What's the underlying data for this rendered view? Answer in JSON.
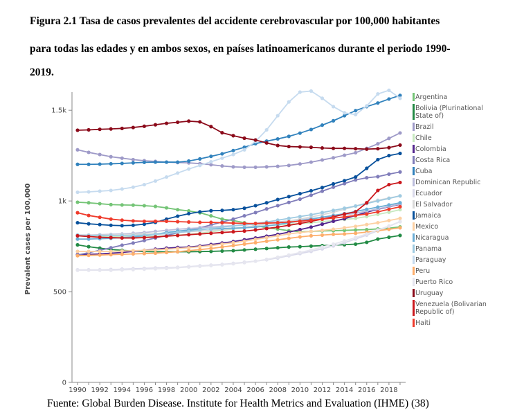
{
  "caption": {
    "line1": "Figura 2.1 Tasa de casos prevalentes del accidente cerebrovascular por 100,000 habitantes",
    "line2": "para todas las edades y en ambos sexos, en países latinoamericanos durante el periodo 1990-",
    "line3": "2019."
  },
  "source": "Fuente: Global Burden Disease. Institute for Health Metrics and Evaluation (IHME) (38)",
  "chart_data": {
    "type": "line",
    "title": "",
    "xlabel": "",
    "ylabel": "Prevalent cases per 100,000",
    "xlim": [
      1989.5,
      2019.5
    ],
    "ylim": [
      0,
      1600
    ],
    "y_ticks": [
      0,
      500,
      1000,
      1500
    ],
    "y_tick_labels": [
      "0",
      "500",
      "1k",
      "1.5k"
    ],
    "x_ticks": [
      1990,
      1992,
      1994,
      1996,
      1998,
      2000,
      2002,
      2004,
      2006,
      2008,
      2010,
      2012,
      2014,
      2016,
      2018
    ],
    "x": [
      1990,
      1991,
      1992,
      1993,
      1994,
      1995,
      1996,
      1997,
      1998,
      1999,
      2000,
      2001,
      2002,
      2003,
      2004,
      2005,
      2006,
      2007,
      2008,
      2009,
      2010,
      2011,
      2012,
      2013,
      2014,
      2015,
      2016,
      2017,
      2018,
      2019
    ],
    "legend_position": "right",
    "series": [
      {
        "name": "Argentina",
        "color": "#74c476",
        "values": [
          993,
          990,
          985,
          980,
          978,
          977,
          974,
          970,
          962,
          952,
          945,
          935,
          918,
          900,
          892,
          880,
          866,
          852,
          845,
          836,
          830,
          832,
          835,
          836,
          838,
          840,
          842,
          846,
          850,
          857
        ]
      },
      {
        "name": "Bolivia (Plurinational State of)",
        "color": "#238b45",
        "values": [
          758,
          748,
          740,
          733,
          728,
          724,
          721,
          720,
          720,
          720,
          720,
          721,
          722,
          724,
          726,
          730,
          734,
          738,
          742,
          746,
          748,
          751,
          754,
          756,
          759,
          762,
          772,
          790,
          800,
          810
        ]
      },
      {
        "name": "Brazil",
        "color": "#9e9ac8",
        "values": [
          1282,
          1268,
          1256,
          1244,
          1236,
          1228,
          1222,
          1218,
          1214,
          1212,
          1210,
          1206,
          1200,
          1193,
          1188,
          1186,
          1186,
          1188,
          1191,
          1196,
          1204,
          1214,
          1226,
          1238,
          1252,
          1266,
          1290,
          1315,
          1345,
          1375
        ]
      },
      {
        "name": "Chile",
        "color": "#c7e9c0",
        "values": [
          812,
          808,
          805,
          803,
          802,
          802,
          803,
          805,
          808,
          812,
          816,
          822,
          830,
          838,
          846,
          852,
          858,
          863,
          868,
          872,
          876,
          880,
          886,
          892,
          898,
          904,
          914,
          926,
          938,
          952
        ]
      },
      {
        "name": "Colombia",
        "color": "#54278f",
        "values": [
          704,
          706,
          708,
          712,
          716,
          722,
          728,
          734,
          740,
          744,
          746,
          752,
          760,
          768,
          776,
          786,
          796,
          806,
          816,
          828,
          842,
          856,
          872,
          888,
          902,
          920,
          938,
          954,
          968,
          982
        ]
      },
      {
        "name": "Costa Rica",
        "color": "#807dba",
        "values": [
          702,
          715,
          728,
          742,
          756,
          768,
          782,
          796,
          810,
          824,
          836,
          852,
          868,
          884,
          900,
          918,
          936,
          956,
          974,
          992,
          1010,
          1032,
          1054,
          1076,
          1096,
          1116,
          1128,
          1134,
          1148,
          1160
        ]
      },
      {
        "name": "Cuba",
        "color": "#3182bd",
        "values": [
          1202,
          1202,
          1203,
          1205,
          1207,
          1210,
          1213,
          1214,
          1214,
          1214,
          1220,
          1232,
          1246,
          1260,
          1278,
          1296,
          1316,
          1330,
          1342,
          1356,
          1374,
          1394,
          1418,
          1442,
          1470,
          1498,
          1520,
          1540,
          1562,
          1582
        ]
      },
      {
        "name": "Dominican Republic",
        "color": "#bcbddc",
        "values": [
          812,
          812,
          814,
          816,
          818,
          822,
          826,
          832,
          838,
          844,
          848,
          852,
          856,
          860,
          864,
          868,
          872,
          878,
          884,
          890,
          896,
          902,
          910,
          918,
          924,
          932,
          944,
          956,
          970,
          984
        ]
      },
      {
        "name": "Ecuador",
        "color": "#dadaeb",
        "values": [
          620,
          620,
          620,
          622,
          624,
          626,
          628,
          630,
          632,
          634,
          638,
          642,
          646,
          650,
          656,
          662,
          668,
          676,
          686,
          698,
          710,
          722,
          736,
          752,
          770,
          790,
          812,
          836,
          860,
          886
        ]
      },
      {
        "name": "El Salvador",
        "color": "#d9d9d9",
        "values": [
          810,
          811,
          812,
          813,
          814,
          816,
          818,
          820,
          822,
          826,
          830,
          834,
          838,
          842,
          848,
          856,
          864,
          872,
          880,
          890,
          900,
          912,
          924,
          938,
          954,
          972,
          990,
          1004,
          1016,
          1028
        ]
      },
      {
        "name": "Jamaica",
        "color": "#08519c",
        "values": [
          880,
          874,
          870,
          866,
          864,
          866,
          872,
          882,
          900,
          916,
          930,
          940,
          946,
          948,
          952,
          960,
          974,
          990,
          1008,
          1024,
          1040,
          1056,
          1074,
          1094,
          1112,
          1132,
          1180,
          1228,
          1250,
          1262
        ]
      },
      {
        "name": "Mexico",
        "color": "#fdd0a2",
        "values": [
          722,
          722,
          722,
          722,
          724,
          726,
          728,
          730,
          734,
          738,
          742,
          748,
          754,
          762,
          770,
          778,
          788,
          798,
          808,
          818,
          826,
          832,
          838,
          844,
          852,
          860,
          870,
          880,
          892,
          904
        ]
      },
      {
        "name": "Nicaragua",
        "color": "#6baed6",
        "values": [
          790,
          790,
          792,
          794,
          798,
          802,
          808,
          816,
          826,
          834,
          840,
          844,
          846,
          848,
          850,
          852,
          856,
          862,
          870,
          880,
          890,
          900,
          910,
          920,
          930,
          942,
          954,
          966,
          978,
          990
        ]
      },
      {
        "name": "Panama",
        "color": "#9ecae1",
        "values": [
          812,
          810,
          810,
          810,
          810,
          810,
          812,
          816,
          820,
          826,
          832,
          840,
          848,
          856,
          862,
          868,
          876,
          884,
          894,
          904,
          914,
          924,
          936,
          948,
          960,
          972,
          986,
          1000,
          1014,
          1028
        ]
      },
      {
        "name": "Paraguay",
        "color": "#c6dbef",
        "values": [
          1048,
          1050,
          1054,
          1058,
          1066,
          1076,
          1090,
          1110,
          1132,
          1154,
          1176,
          1196,
          1216,
          1236,
          1256,
          1282,
          1328,
          1392,
          1470,
          1546,
          1600,
          1606,
          1566,
          1520,
          1486,
          1476,
          1524,
          1590,
          1610,
          1566
        ]
      },
      {
        "name": "Peru",
        "color": "#fdae6b",
        "values": [
          698,
          700,
          702,
          704,
          706,
          708,
          710,
          712,
          716,
          720,
          726,
          732,
          738,
          746,
          754,
          762,
          770,
          778,
          786,
          794,
          802,
          808,
          812,
          816,
          818,
          822,
          828,
          836,
          844,
          852
        ]
      },
      {
        "name": "Puerto Rico",
        "color": "#e6e6ef",
        "values": [
          618,
          618,
          618,
          618,
          620,
          622,
          624,
          626,
          628,
          632,
          636,
          640,
          644,
          648,
          654,
          660,
          668,
          678,
          690,
          702,
          716,
          730,
          746,
          762,
          780,
          798,
          818,
          840,
          862,
          886
        ]
      },
      {
        "name": "Uruguay",
        "color": "#8b0a1a",
        "values": [
          1390,
          1392,
          1395,
          1397,
          1400,
          1405,
          1412,
          1420,
          1428,
          1434,
          1440,
          1436,
          1410,
          1376,
          1360,
          1346,
          1336,
          1320,
          1306,
          1300,
          1298,
          1296,
          1292,
          1290,
          1290,
          1288,
          1286,
          1288,
          1294,
          1308
        ]
      },
      {
        "name": "Venezuela (Bolivarian Republic of)",
        "color": "#cb181d",
        "values": [
          808,
          804,
          800,
          798,
          796,
          796,
          798,
          802,
          806,
          810,
          814,
          818,
          822,
          826,
          830,
          834,
          840,
          848,
          856,
          866,
          876,
          888,
          900,
          912,
          928,
          940,
          990,
          1058,
          1090,
          1102
        ]
      },
      {
        "name": "Haiti",
        "color": "#ef3b2c",
        "values": [
          935,
          920,
          910,
          900,
          894,
          890,
          888,
          888,
          888,
          886,
          884,
          882,
          882,
          880,
          878,
          876,
          876,
          878,
          880,
          884,
          888,
          894,
          900,
          906,
          912,
          920,
          928,
          940,
          954,
          968
        ]
      }
    ]
  }
}
